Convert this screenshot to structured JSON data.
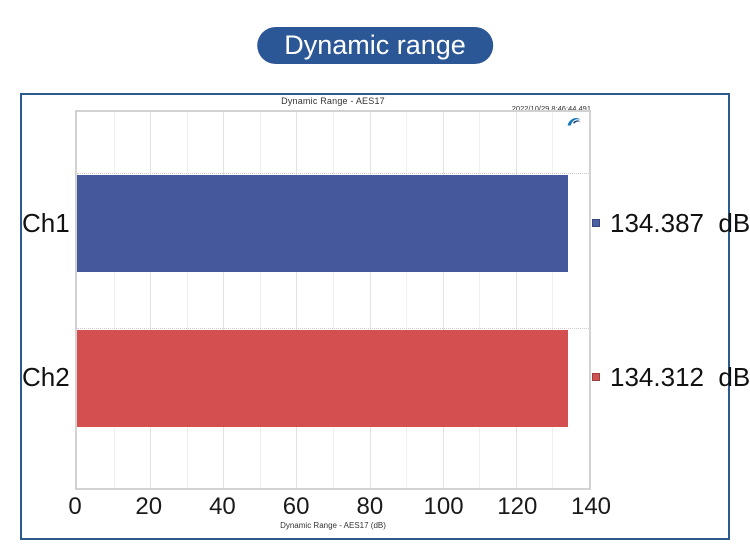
{
  "badge": {
    "label": "Dynamic range",
    "color": "#2B5796"
  },
  "chart_data": {
    "type": "bar",
    "orientation": "horizontal",
    "title": "Dynamic Range - AES17",
    "timestamp": "2022/10/29 8:46:44.491",
    "footer_label": "Dynamic Range - AES17 (dB)",
    "categories": [
      "Ch1",
      "Ch2"
    ],
    "values": [
      134.387,
      134.312
    ],
    "value_labels": [
      "134.387  dB",
      "134.312  dB"
    ],
    "unit": "dB",
    "bar_colors": [
      "#44589B",
      "#D45050"
    ],
    "marker_colors": [
      "#4A5FA5",
      "#D15454"
    ],
    "xlim": [
      0,
      140
    ],
    "xticks": [
      0,
      20,
      40,
      60,
      80,
      100,
      120,
      140
    ],
    "minor_tick_step": 10,
    "major_tick_step": 20,
    "grid": "vertical",
    "logo": "audio-precision"
  },
  "colors": {
    "frame_border": "#2d5a8c",
    "plot_border": "#d2d2d2",
    "grid_minor": "#efefef",
    "grid_major": "#e2e2e2",
    "text": "#111111"
  }
}
